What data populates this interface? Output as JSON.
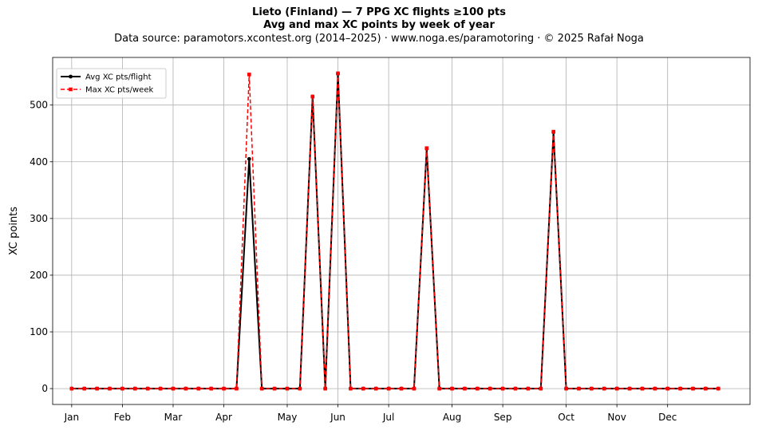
{
  "chart_data": {
    "type": "line",
    "title": "Lieto (Finland)  —  7 PPG XC flights ≥100 pts",
    "subtitle": "Avg and max XC points by week of year",
    "source": "Data source: paramotors.xcontest.org (2014–2025)  ·  www.noga.es/paramotoring  ·  © 2025 Rafał Noga",
    "xlabel": "",
    "ylabel": "XC points",
    "ylim": [
      -28,
      584
    ],
    "xlim": [
      -1.5,
      53.5
    ],
    "yticks": [
      0,
      100,
      200,
      300,
      400,
      500
    ],
    "xticks": [
      {
        "week": 0,
        "label": "Jan"
      },
      {
        "week": 4,
        "label": "Feb"
      },
      {
        "week": 8,
        "label": "Mar"
      },
      {
        "week": 12,
        "label": "Apr"
      },
      {
        "week": 17,
        "label": "May"
      },
      {
        "week": 21,
        "label": "Jun"
      },
      {
        "week": 25,
        "label": "Jul"
      },
      {
        "week": 30,
        "label": "Aug"
      },
      {
        "week": 34,
        "label": "Sep"
      },
      {
        "week": 39,
        "label": "Oct"
      },
      {
        "week": 43,
        "label": "Nov"
      },
      {
        "week": 47,
        "label": "Dec"
      }
    ],
    "grid": true,
    "legend_position": "top-left",
    "x": [
      0,
      1,
      2,
      3,
      4,
      5,
      6,
      7,
      8,
      9,
      10,
      11,
      12,
      13,
      14,
      15,
      16,
      17,
      18,
      19,
      20,
      21,
      22,
      23,
      24,
      25,
      26,
      27,
      28,
      29,
      30,
      31,
      32,
      33,
      34,
      35,
      36,
      37,
      38,
      39,
      40,
      41,
      42,
      43,
      44,
      45,
      46,
      47,
      48,
      49,
      50,
      51
    ],
    "series": [
      {
        "name": "Avg XC pts/flight",
        "color": "#000000",
        "values": [
          0,
          0,
          0,
          0,
          0,
          0,
          0,
          0,
          0,
          0,
          0,
          0,
          0,
          0,
          405,
          0,
          0,
          0,
          0,
          515,
          0,
          555,
          0,
          0,
          0,
          0,
          0,
          0,
          423,
          0,
          0,
          0,
          0,
          0,
          0,
          0,
          0,
          0,
          452,
          0,
          0,
          0,
          0,
          0,
          0,
          0,
          0,
          0,
          0,
          0,
          0,
          0
        ]
      },
      {
        "name": "Max XC pts/week",
        "color": "#ff0000",
        "values": [
          0,
          0,
          0,
          0,
          0,
          0,
          0,
          0,
          0,
          0,
          0,
          0,
          0,
          0,
          554,
          0,
          0,
          0,
          0,
          515,
          0,
          556,
          0,
          0,
          0,
          0,
          0,
          0,
          424,
          0,
          0,
          0,
          0,
          0,
          0,
          0,
          0,
          0,
          453,
          0,
          0,
          0,
          0,
          0,
          0,
          0,
          0,
          0,
          0,
          0,
          0,
          0
        ]
      }
    ]
  }
}
